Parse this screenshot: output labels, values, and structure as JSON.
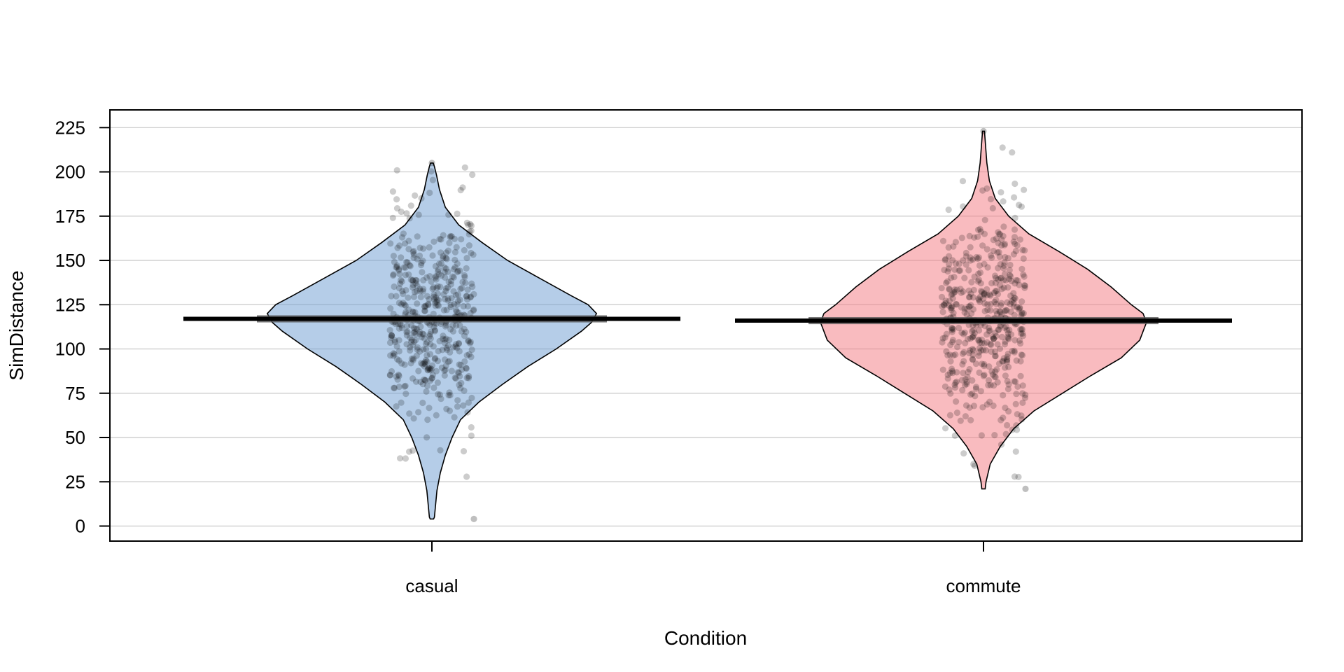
{
  "chart_data": {
    "type": "pirate",
    "title": "",
    "xlabel": "Condition",
    "ylabel": "SimDistance",
    "ylim": [
      -8.5,
      235
    ],
    "yticks": [
      0,
      25,
      50,
      75,
      100,
      125,
      150,
      175,
      200,
      225
    ],
    "grid": true,
    "groups": [
      {
        "name": "casual",
        "mean": 117,
        "ci": [
          115,
          119
        ],
        "min": 4,
        "max": 205,
        "n": 500,
        "color": "#6C9BD2",
        "density": [
          [
            4,
            0.01
          ],
          [
            5,
            0.015
          ],
          [
            10,
            0.02
          ],
          [
            20,
            0.03
          ],
          [
            30,
            0.05
          ],
          [
            40,
            0.08
          ],
          [
            50,
            0.12
          ],
          [
            60,
            0.17
          ],
          [
            70,
            0.28
          ],
          [
            80,
            0.42
          ],
          [
            90,
            0.57
          ],
          [
            100,
            0.74
          ],
          [
            110,
            0.89
          ],
          [
            115,
            0.95
          ],
          [
            120,
            0.98
          ],
          [
            125,
            0.93
          ],
          [
            130,
            0.83
          ],
          [
            140,
            0.64
          ],
          [
            150,
            0.45
          ],
          [
            160,
            0.3
          ],
          [
            170,
            0.16
          ],
          [
            180,
            0.08
          ],
          [
            190,
            0.045
          ],
          [
            198,
            0.028
          ],
          [
            203,
            0.015
          ],
          [
            205,
            0.008
          ]
        ]
      },
      {
        "name": "commute",
        "mean": 116,
        "ci": [
          114,
          118
        ],
        "min": 21,
        "max": 223,
        "n": 500,
        "color": "#F4777F",
        "density": [
          [
            21,
            0.01
          ],
          [
            25,
            0.015
          ],
          [
            35,
            0.04
          ],
          [
            45,
            0.1
          ],
          [
            55,
            0.18
          ],
          [
            65,
            0.3
          ],
          [
            75,
            0.47
          ],
          [
            85,
            0.64
          ],
          [
            95,
            0.82
          ],
          [
            105,
            0.93
          ],
          [
            115,
            0.97
          ],
          [
            120,
            0.95
          ],
          [
            125,
            0.88
          ],
          [
            135,
            0.76
          ],
          [
            145,
            0.62
          ],
          [
            155,
            0.45
          ],
          [
            165,
            0.27
          ],
          [
            175,
            0.15
          ],
          [
            185,
            0.07
          ],
          [
            195,
            0.035
          ],
          [
            205,
            0.02
          ],
          [
            215,
            0.012
          ],
          [
            223,
            0.006
          ]
        ]
      }
    ]
  }
}
